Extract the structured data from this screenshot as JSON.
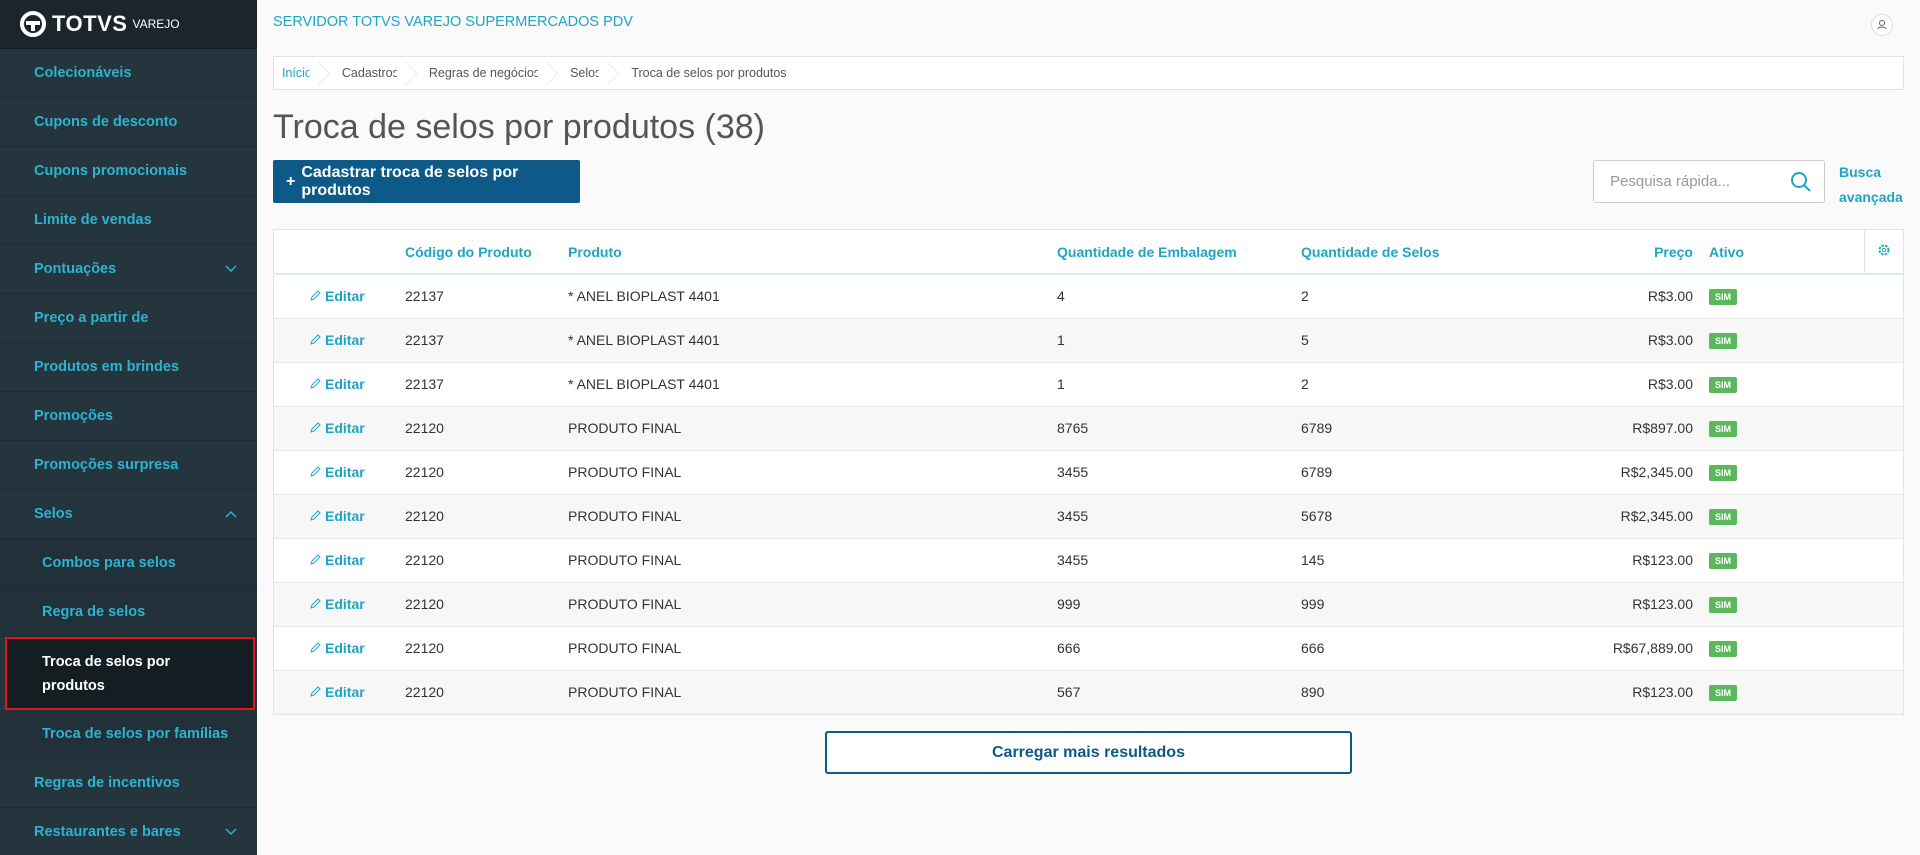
{
  "sidebar": {
    "logo": "TOTVS",
    "logo_sub": "VAREJO",
    "items": [
      {
        "label": "Colecionáveis"
      },
      {
        "label": "Cupons de desconto"
      },
      {
        "label": "Cupons promocionais"
      },
      {
        "label": "Limite de vendas"
      },
      {
        "label": "Pontuações",
        "expand": "down"
      },
      {
        "label": "Preço a partir de"
      },
      {
        "label": "Produtos em brindes"
      },
      {
        "label": "Promoções"
      },
      {
        "label": "Promoções surpresa"
      },
      {
        "label": "Selos",
        "expand": "up"
      },
      {
        "label": "Combos para selos",
        "level": 2
      },
      {
        "label": "Regra de selos",
        "level": 2
      },
      {
        "label": "Troca de selos por produtos",
        "level": 2,
        "active": true
      },
      {
        "label": "Troca de selos por famílias",
        "level": 2
      },
      {
        "label": "Regras de incentivos"
      },
      {
        "label": "Restaurantes e bares",
        "expand": "down"
      }
    ]
  },
  "header": {
    "title": "SERVIDOR TOTVS VAREJO SUPERMERCADOS PDV"
  },
  "breadcrumb": [
    "Início",
    "Cadastros",
    "Regras de negócios",
    "Selos",
    "Troca de selos por produtos"
  ],
  "page": {
    "title": "Troca de selos por produtos (38)",
    "add_button": "Cadastrar troca de selos por produtos",
    "search_placeholder": "Pesquisa rápida...",
    "advanced_search": "Busca avançada"
  },
  "table": {
    "columns": [
      "Código do Produto",
      "Produto",
      "Quantidade de Embalagem",
      "Quantidade de Selos",
      "Preço",
      "Ativo"
    ],
    "edit_label": "Editar",
    "rows": [
      {
        "code": "22137",
        "product": "* ANEL BIOPLAST 4401",
        "pack_qty": "4",
        "stamp_qty": "2",
        "price": "R$3.00",
        "active": "SIM"
      },
      {
        "code": "22137",
        "product": "* ANEL BIOPLAST 4401",
        "pack_qty": "1",
        "stamp_qty": "5",
        "price": "R$3.00",
        "active": "SIM"
      },
      {
        "code": "22137",
        "product": "* ANEL BIOPLAST 4401",
        "pack_qty": "1",
        "stamp_qty": "2",
        "price": "R$3.00",
        "active": "SIM"
      },
      {
        "code": "22120",
        "product": "PRODUTO FINAL",
        "pack_qty": "8765",
        "stamp_qty": "6789",
        "price": "R$897.00",
        "active": "SIM"
      },
      {
        "code": "22120",
        "product": "PRODUTO FINAL",
        "pack_qty": "3455",
        "stamp_qty": "6789",
        "price": "R$2,345.00",
        "active": "SIM"
      },
      {
        "code": "22120",
        "product": "PRODUTO FINAL",
        "pack_qty": "3455",
        "stamp_qty": "5678",
        "price": "R$2,345.00",
        "active": "SIM"
      },
      {
        "code": "22120",
        "product": "PRODUTO FINAL",
        "pack_qty": "3455",
        "stamp_qty": "145",
        "price": "R$123.00",
        "active": "SIM"
      },
      {
        "code": "22120",
        "product": "PRODUTO FINAL",
        "pack_qty": "999",
        "stamp_qty": "999",
        "price": "R$123.00",
        "active": "SIM"
      },
      {
        "code": "22120",
        "product": "PRODUTO FINAL",
        "pack_qty": "666",
        "stamp_qty": "666",
        "price": "R$67,889.00",
        "active": "SIM"
      },
      {
        "code": "22120",
        "product": "PRODUTO FINAL",
        "pack_qty": "567",
        "stamp_qty": "890",
        "price": "R$123.00",
        "active": "SIM"
      }
    ],
    "load_more": "Carregar mais resultados"
  }
}
